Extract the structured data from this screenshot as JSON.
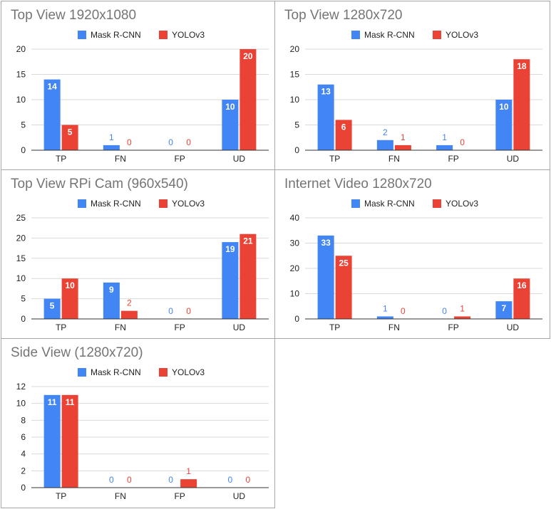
{
  "colors": {
    "mask_rcnn": "#4285f4",
    "yolov3": "#ea4335",
    "grid": "#d9d9d9",
    "axis": "#333333",
    "text": "#222222",
    "title": "#757575"
  },
  "chart_data": [
    {
      "type": "bar",
      "title": "Top View 1920x1080",
      "categories": [
        "TP",
        "FN",
        "FP",
        "UD"
      ],
      "series": [
        {
          "name": "Mask R-CNN",
          "values": [
            14,
            1,
            0,
            10
          ]
        },
        {
          "name": "YOLOv3",
          "values": [
            5,
            0,
            0,
            20
          ]
        }
      ],
      "yticks": [
        0,
        5,
        10,
        15,
        20
      ],
      "ylim": [
        0,
        20
      ],
      "legend_position": "top",
      "grid": true
    },
    {
      "type": "bar",
      "title": "Top View 1280x720",
      "categories": [
        "TP",
        "FN",
        "FP",
        "UD"
      ],
      "series": [
        {
          "name": "Mask R-CNN",
          "values": [
            13,
            2,
            1,
            10
          ]
        },
        {
          "name": "YOLOv3",
          "values": [
            6,
            1,
            0,
            18
          ]
        }
      ],
      "yticks": [
        0,
        5,
        10,
        15,
        20
      ],
      "ylim": [
        0,
        20
      ],
      "legend_position": "top",
      "grid": true
    },
    {
      "type": "bar",
      "title": "Top View RPi Cam (960x540)",
      "categories": [
        "TP",
        "FN",
        "FP",
        "UD"
      ],
      "series": [
        {
          "name": "Mask R-CNN",
          "values": [
            5,
            9,
            0,
            19
          ]
        },
        {
          "name": "YOLOv3",
          "values": [
            10,
            2,
            0,
            21
          ]
        }
      ],
      "yticks": [
        0,
        5,
        10,
        15,
        20,
        25
      ],
      "ylim": [
        0,
        25
      ],
      "legend_position": "top",
      "grid": true
    },
    {
      "type": "bar",
      "title": "Internet Video 1280x720",
      "categories": [
        "TP",
        "FN",
        "FP",
        "UD"
      ],
      "series": [
        {
          "name": "Mask R-CNN",
          "values": [
            33,
            1,
            0,
            7
          ]
        },
        {
          "name": "YOLOv3",
          "values": [
            25,
            0,
            1,
            16
          ]
        }
      ],
      "yticks": [
        0,
        10,
        20,
        30,
        40
      ],
      "ylim": [
        0,
        40
      ],
      "legend_position": "top",
      "grid": true
    },
    {
      "type": "bar",
      "title": "Side View (1280x720)",
      "categories": [
        "TP",
        "FN",
        "FP",
        "UD"
      ],
      "series": [
        {
          "name": "Mask R-CNN",
          "values": [
            11,
            0,
            0,
            0
          ]
        },
        {
          "name": "YOLOv3",
          "values": [
            11,
            0,
            1,
            0
          ]
        }
      ],
      "yticks": [
        0,
        2,
        4,
        6,
        8,
        10,
        12
      ],
      "ylim": [
        0,
        12
      ],
      "legend_position": "top",
      "grid": true
    }
  ]
}
